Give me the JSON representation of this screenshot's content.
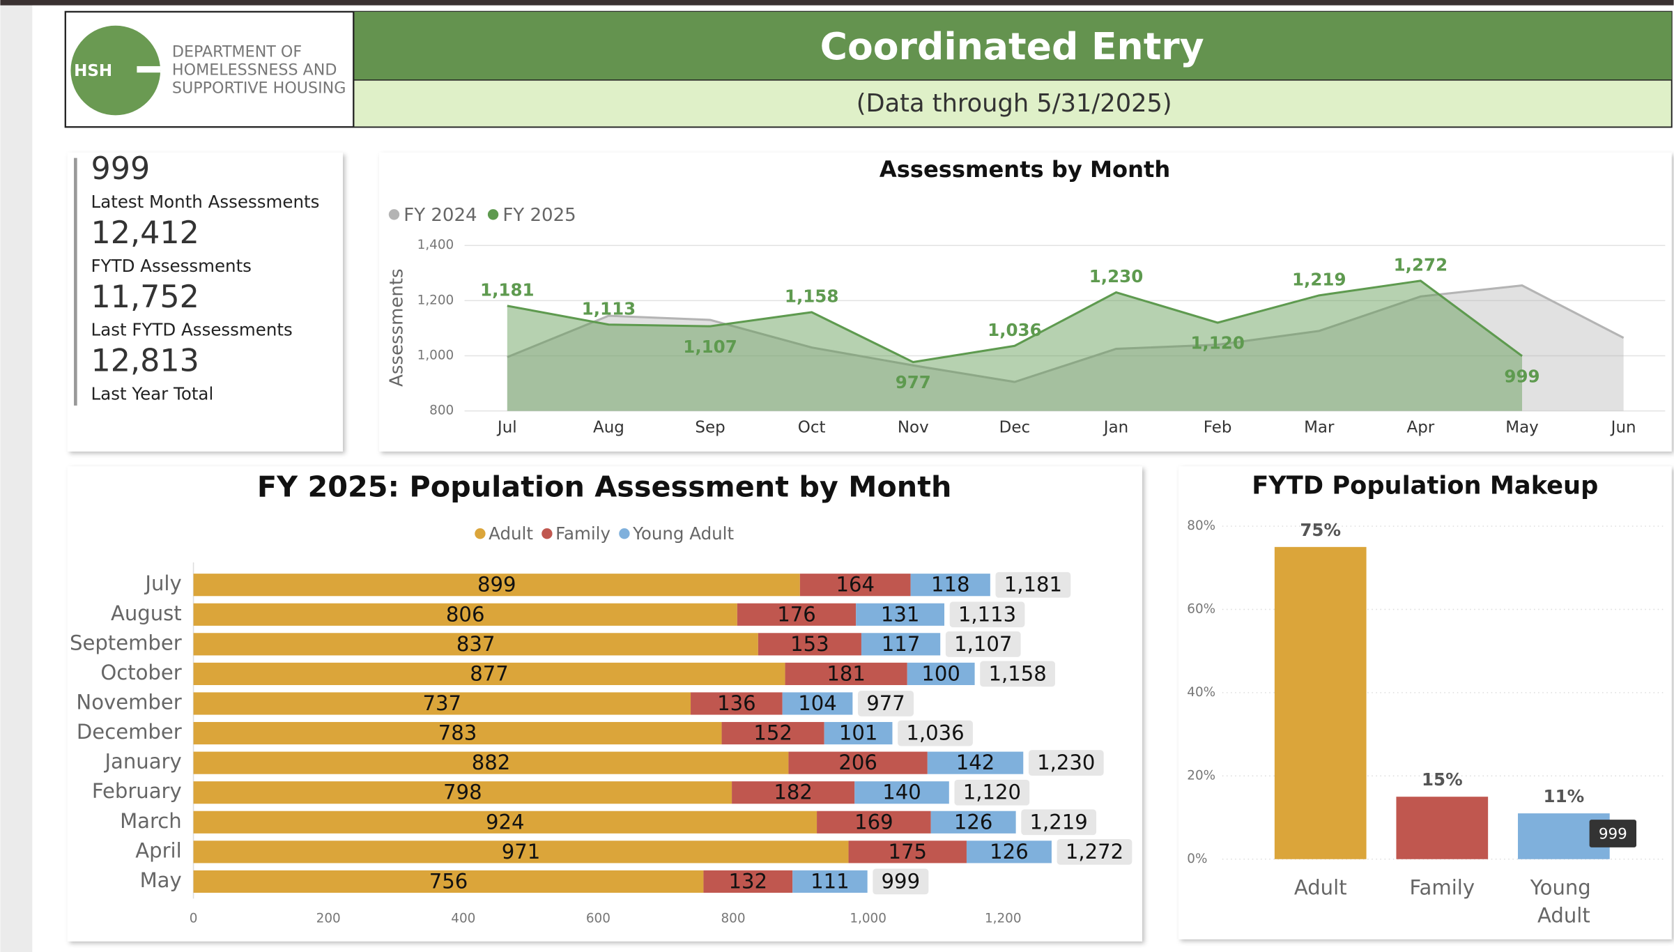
{
  "header": {
    "logo": "HSH",
    "org": [
      "DEPARTMENT OF",
      "HOMELESSNESS AND",
      "SUPPORTIVE HOUSING"
    ],
    "title": "Coordinated Entry",
    "subtitle": "(Data through 5/31/2025)"
  },
  "kpis": [
    {
      "value": "999",
      "label": "Latest Month Assessments"
    },
    {
      "value": "12,412",
      "label": "FYTD Assessments"
    },
    {
      "value": "11,752",
      "label": "Last FYTD Assessments"
    },
    {
      "value": "12,813",
      "label": "Last Year Total"
    }
  ],
  "tooltip": "999",
  "chart_data": [
    {
      "type": "area",
      "title": "Assessments by Month",
      "y_label": "Assessments",
      "categories": [
        "Jul",
        "Aug",
        "Sep",
        "Oct",
        "Nov",
        "Dec",
        "Jan",
        "Feb",
        "Mar",
        "Apr",
        "May",
        "Jun"
      ],
      "series": [
        {
          "name": "FY 2024",
          "color": "#b4b4b4",
          "values": [
            995,
            1145,
            1130,
            1030,
            965,
            905,
            1025,
            1040,
            1090,
            1215,
            1255,
            1065
          ]
        },
        {
          "name": "FY 2025",
          "color": "#5e9a4f",
          "values": [
            1181,
            1113,
            1107,
            1158,
            977,
            1036,
            1230,
            1120,
            1219,
            1272,
            999,
            null
          ],
          "value_labels": [
            "1,181",
            "1,113",
            "1,107",
            "1,158",
            "977",
            "1,036",
            "1,230",
            "1,120",
            "1,219",
            "1,272",
            "999",
            null
          ]
        }
      ],
      "ylim": [
        800,
        1400
      ],
      "yticks": [
        800,
        {
          "value": 1000,
          "label": "1,000"
        },
        {
          "value": 1200,
          "label": "1,200"
        },
        {
          "value": 1400,
          "label": "1,400"
        }
      ],
      "grid": true,
      "legend": "top-left"
    },
    {
      "type": "stacked-hbar",
      "title": "FY 2025: Population Assessment by Month",
      "categories": [
        "July",
        "August",
        "September",
        "October",
        "November",
        "December",
        "January",
        "February",
        "March",
        "April",
        "May"
      ],
      "series": [
        {
          "name": "Adult",
          "color": "#dba53a",
          "values": [
            899,
            806,
            837,
            877,
            737,
            783,
            882,
            798,
            924,
            971,
            756
          ]
        },
        {
          "name": "Family",
          "color": "#c0574f",
          "values": [
            164,
            176,
            153,
            181,
            136,
            152,
            206,
            182,
            169,
            175,
            132
          ]
        },
        {
          "name": "Young Adult",
          "color": "#7fb0dc",
          "values": [
            118,
            131,
            117,
            100,
            104,
            101,
            142,
            140,
            126,
            126,
            111
          ]
        }
      ],
      "totals": [
        1181,
        1113,
        1107,
        1158,
        977,
        1036,
        1230,
        1120,
        1219,
        1272,
        999
      ],
      "total_labels": [
        "1,181",
        "1,113",
        "1,107",
        "1,158",
        "977",
        "1,036",
        "1,230",
        "1,120",
        "1,219",
        "1,272",
        "999"
      ],
      "xlim": [
        0,
        1400
      ],
      "xticks": [
        0,
        200,
        400,
        600,
        800,
        {
          "value": 1000,
          "label": "1,000"
        },
        {
          "value": 1200,
          "label": "1,200"
        }
      ],
      "legend": "top"
    },
    {
      "type": "bar",
      "title": "FYTD Population Makeup",
      "categories": [
        "Adult",
        "Family",
        "Young Adult"
      ],
      "values": [
        75,
        15,
        11
      ],
      "value_labels": [
        "75%",
        "15%",
        "11%"
      ],
      "colors": [
        "#dba53a",
        "#c0574f",
        "#7fb0dc"
      ],
      "ylim": [
        0,
        80
      ],
      "yticks": [
        {
          "value": 0,
          "label": "0%"
        },
        {
          "value": 20,
          "label": "20%"
        },
        {
          "value": 40,
          "label": "40%"
        },
        {
          "value": 60,
          "label": "60%"
        },
        {
          "value": 80,
          "label": "80%"
        }
      ],
      "grid": true
    }
  ]
}
